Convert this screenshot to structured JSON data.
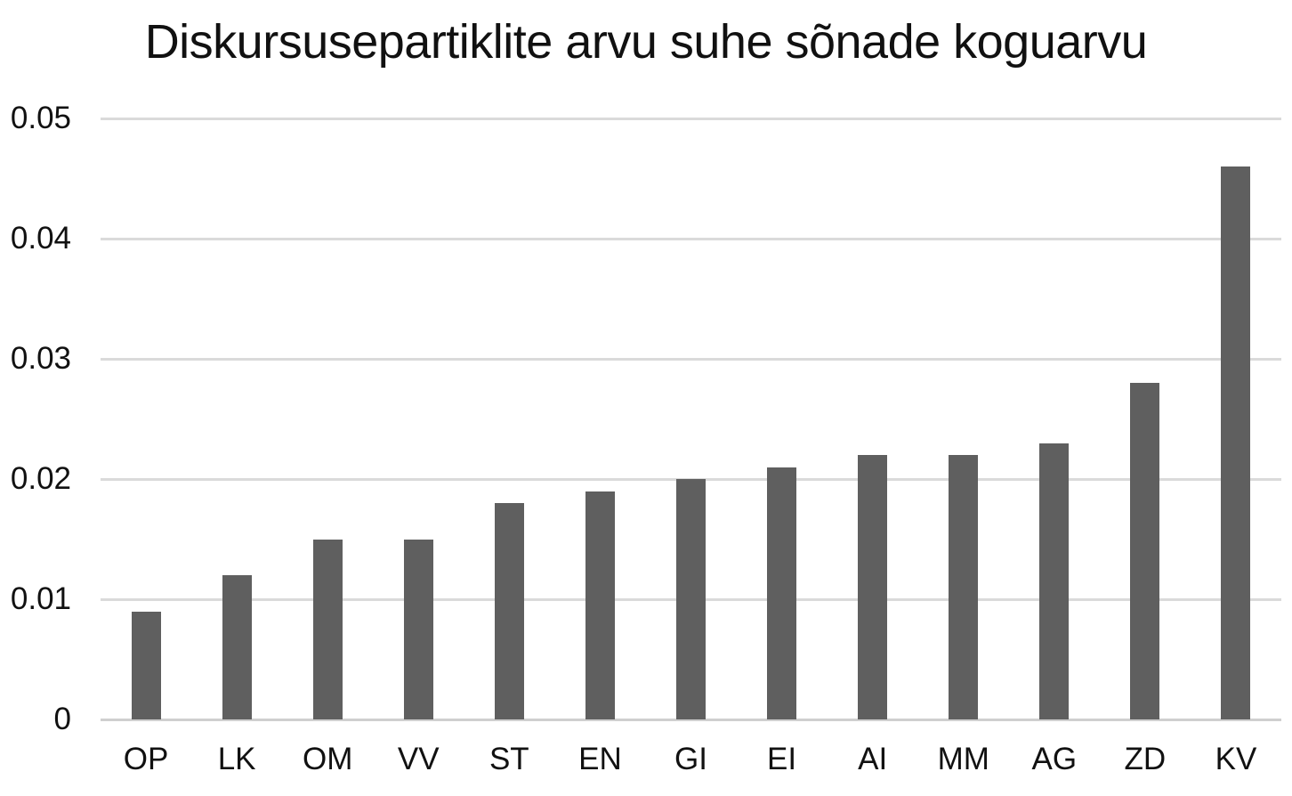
{
  "chart_data": {
    "type": "bar",
    "title": "Diskursusepartiklite arvu suhe sõnade koguarvu",
    "categories": [
      "OP",
      "LK",
      "OM",
      "VV",
      "ST",
      "EN",
      "GI",
      "EI",
      "AI",
      "MM",
      "AG",
      "ZD",
      "KV"
    ],
    "values": [
      0.009,
      0.012,
      0.015,
      0.015,
      0.018,
      0.019,
      0.02,
      0.021,
      0.022,
      0.022,
      0.023,
      0.028,
      0.046
    ],
    "xlabel": "",
    "ylabel": "",
    "ylim": [
      0,
      0.05
    ],
    "yticks": [
      0,
      0.01,
      0.02,
      0.03,
      0.04,
      0.05
    ],
    "ytick_labels": [
      "0",
      "0.01",
      "0.02",
      "0.03",
      "0.04",
      "0.05"
    ],
    "grid": "horizontal",
    "legend": "none",
    "colors": {
      "bar": "#5f5f5f",
      "gridline": "#dadada",
      "baseline": "#cfcfcf",
      "text": "#111111",
      "background": "#ffffff"
    }
  }
}
